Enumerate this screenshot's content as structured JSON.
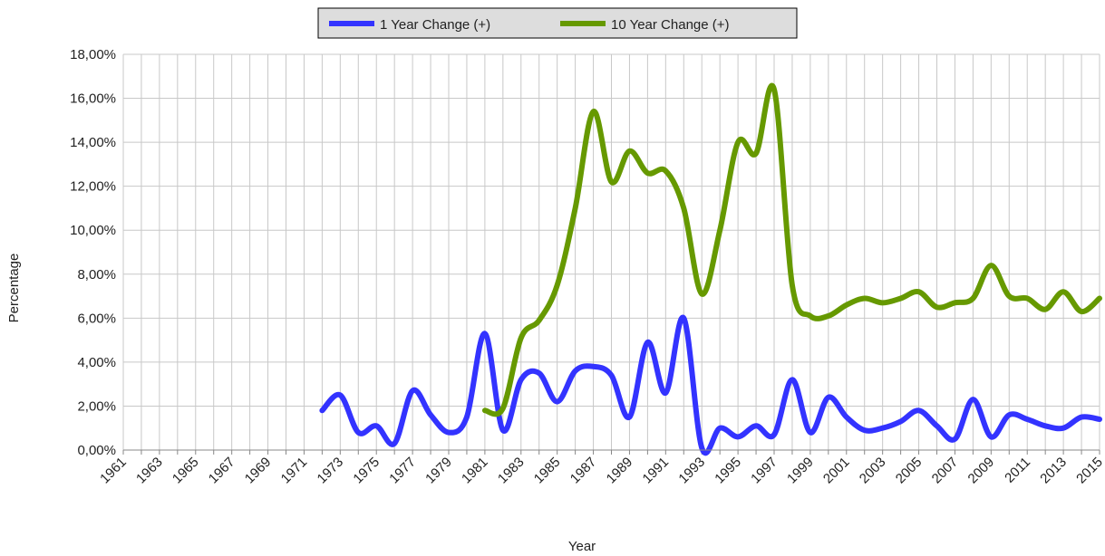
{
  "chart_data": {
    "type": "line",
    "x_label": "Year",
    "y_label": "Percentage",
    "categories": [
      "1961",
      null,
      "1963",
      null,
      "1965",
      null,
      "1967",
      null,
      "1969",
      null,
      "1971",
      null,
      "1973",
      null,
      "1975",
      null,
      "1977",
      null,
      "1979",
      null,
      "1981",
      null,
      "1983",
      null,
      "1985",
      null,
      "1987",
      null,
      "1989",
      null,
      "1991",
      null,
      "1993",
      null,
      "1995",
      null,
      "1997",
      null,
      "1999",
      null,
      "2001",
      null,
      "2003",
      null,
      "2005",
      null,
      "2007",
      null,
      "2009",
      null,
      "2011",
      null,
      "2013",
      null,
      "2015"
    ],
    "series": [
      {
        "name": "1 Year Change (+)",
        "color": "#3333ff",
        "values": [
          null,
          null,
          null,
          null,
          null,
          null,
          null,
          null,
          null,
          null,
          null,
          1.8,
          2.5,
          0.8,
          1.1,
          0.3,
          2.7,
          1.6,
          0.8,
          1.5,
          5.3,
          0.9,
          3.2,
          3.5,
          2.2,
          3.6,
          3.8,
          3.4,
          1.5,
          4.9,
          2.6,
          6.0,
          0.1,
          1.0,
          0.6,
          1.1,
          0.7,
          3.2,
          0.8,
          2.4,
          1.5,
          0.9,
          1.0,
          1.3,
          1.8,
          1.1,
          0.5,
          2.3,
          0.6,
          1.6,
          1.4,
          1.1,
          1.0,
          1.5,
          1.4
        ]
      },
      {
        "name": "10 Year Change (+)",
        "color": "#669900",
        "values": [
          null,
          null,
          null,
          null,
          null,
          null,
          null,
          null,
          null,
          null,
          null,
          null,
          null,
          null,
          null,
          null,
          null,
          null,
          null,
          null,
          1.8,
          1.9,
          5.1,
          5.9,
          7.5,
          11.0,
          15.4,
          12.2,
          13.6,
          12.6,
          12.7,
          11.0,
          7.1,
          10.0,
          14.0,
          13.5,
          16.4,
          7.5,
          6.1,
          6.1,
          6.6,
          6.9,
          6.7,
          6.9,
          7.2,
          6.5,
          6.7,
          6.9,
          8.4,
          7.0,
          6.9,
          6.4,
          7.2,
          6.3,
          6.9
        ]
      }
    ],
    "ylim": [
      0,
      18
    ],
    "yticks": [
      {
        "value": 0,
        "label": "0,00%"
      },
      {
        "value": 2,
        "label": "2,00%"
      },
      {
        "value": 4,
        "label": "4,00%"
      },
      {
        "value": 6,
        "label": "6,00%"
      },
      {
        "value": 8,
        "label": "8,00%"
      },
      {
        "value": 10,
        "label": "10,00%"
      },
      {
        "value": 12,
        "label": "12,00%"
      },
      {
        "value": 14,
        "label": "14,00%"
      },
      {
        "value": 16,
        "label": "16,00%"
      },
      {
        "value": 18,
        "label": "18,00%"
      }
    ],
    "grid": true,
    "legend": "top"
  }
}
